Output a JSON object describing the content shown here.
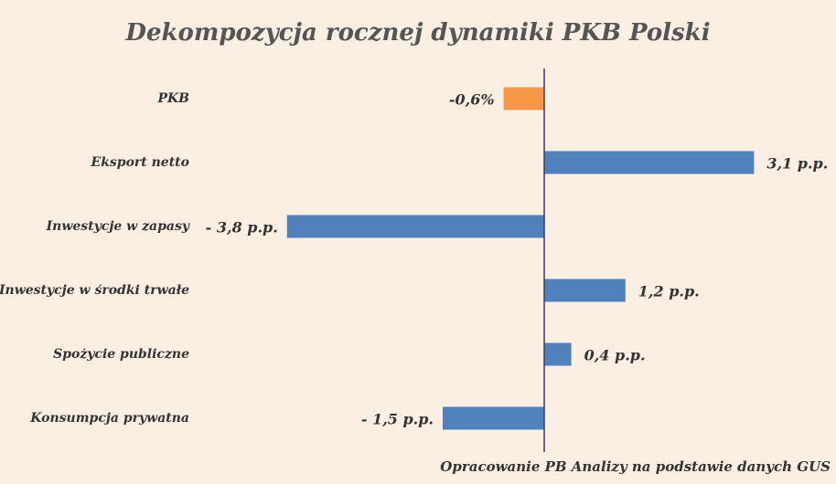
{
  "chart_data": {
    "type": "bar",
    "orientation": "horizontal",
    "title": "Dekompozycja rocznej dynamiki PKB Polski",
    "categories": [
      "PKB",
      "Eksport netto",
      "Inwestycje w zapasy",
      "Inwestycje w środki trwałe",
      "Spożycie publiczne",
      "Konsumpcja prywatna"
    ],
    "values": [
      -0.6,
      3.1,
      -3.8,
      1.2,
      0.4,
      -1.5
    ],
    "value_labels": [
      "-0,6%",
      "3,1 p.p.",
      "- 3,8 p.p.",
      "1,2 p.p.",
      "0,4 p.p.",
      "- 1,5 p.p."
    ],
    "colors": [
      "#f79646",
      "#4f81bd",
      "#4f81bd",
      "#4f81bd",
      "#4f81bd",
      "#4f81bd"
    ],
    "note": "Opracowanie PB Analizy na podstawie danych GUS"
  }
}
